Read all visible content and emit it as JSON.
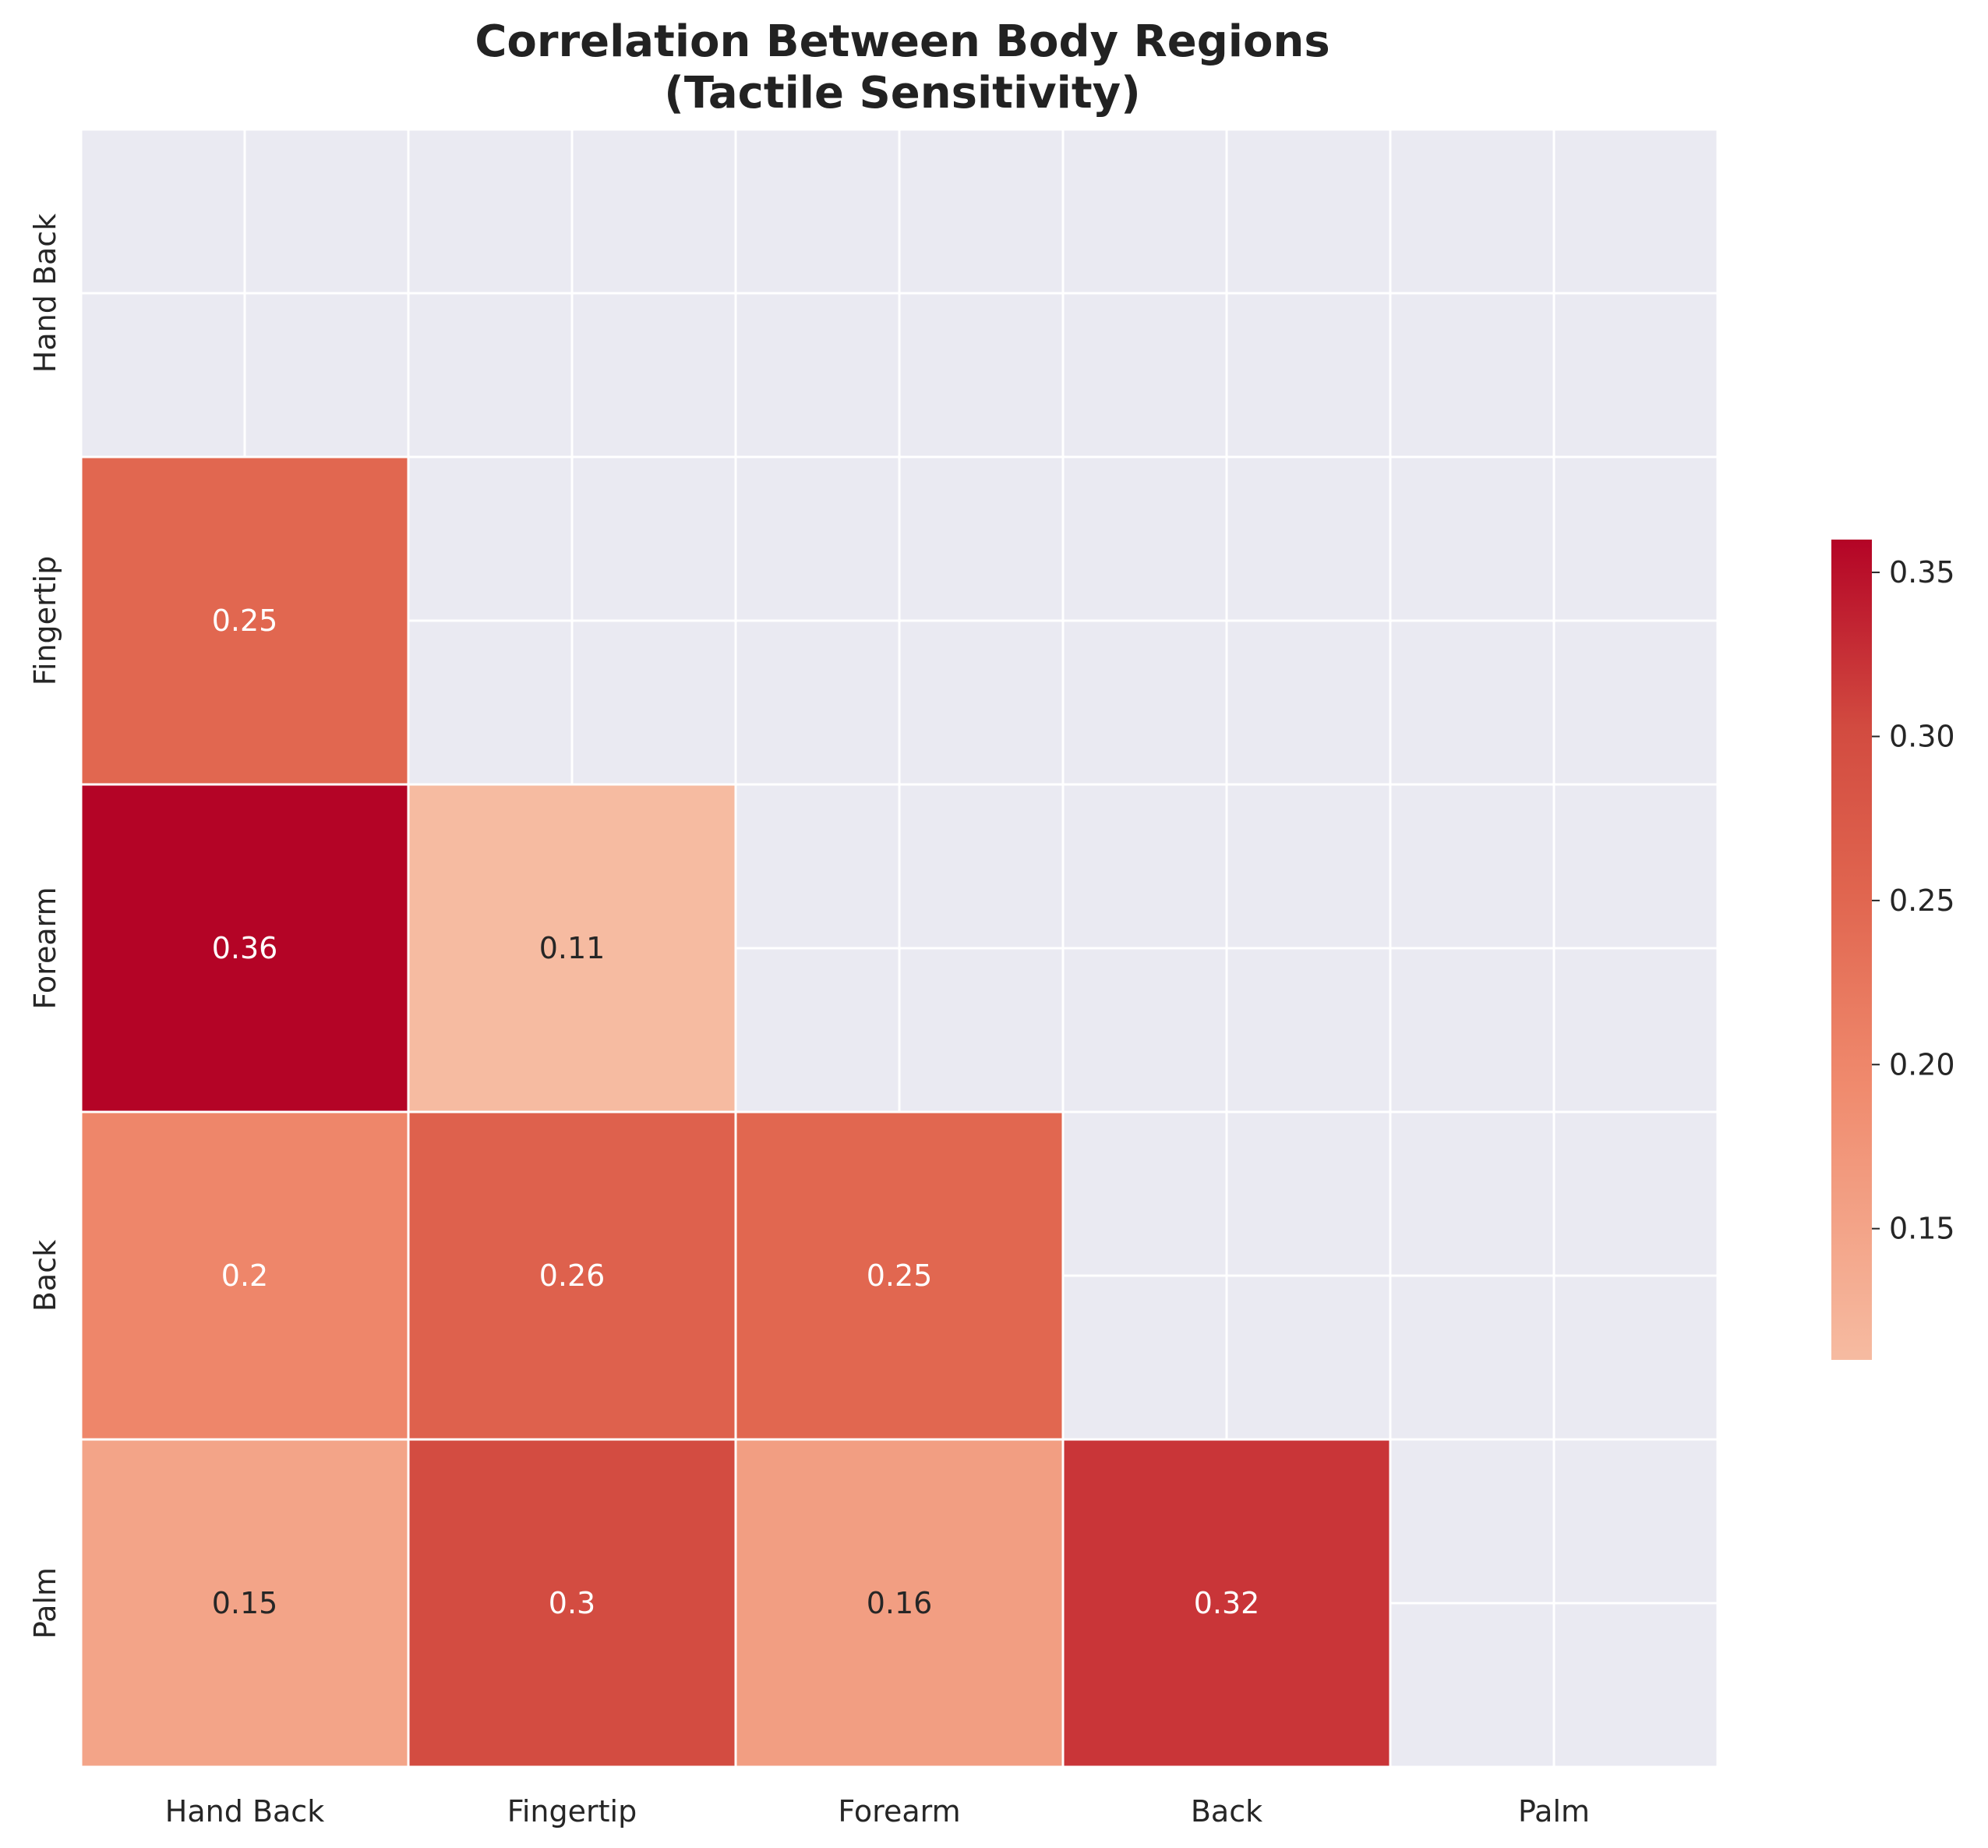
{
  "chart_data": {
    "type": "heatmap",
    "title_line1": "Correlation Between Body Regions",
    "title_line2": "(Tactile Sensitivity)",
    "x_labels": [
      "Hand Back",
      "Fingertip",
      "Forearm",
      "Back",
      "Palm"
    ],
    "y_labels": [
      "Hand Back",
      "Fingertip",
      "Forearm",
      "Back",
      "Palm"
    ],
    "mask": "upper-triangle-including-diagonal",
    "cells": [
      {
        "row": 1,
        "col": 0,
        "value": 0.25,
        "label": "0.25"
      },
      {
        "row": 2,
        "col": 0,
        "value": 0.36,
        "label": "0.36"
      },
      {
        "row": 2,
        "col": 1,
        "value": 0.11,
        "label": "0.11"
      },
      {
        "row": 3,
        "col": 0,
        "value": 0.2,
        "label": "0.2"
      },
      {
        "row": 3,
        "col": 1,
        "value": 0.26,
        "label": "0.26"
      },
      {
        "row": 3,
        "col": 2,
        "value": 0.25,
        "label": "0.25"
      },
      {
        "row": 4,
        "col": 0,
        "value": 0.15,
        "label": "0.15"
      },
      {
        "row": 4,
        "col": 1,
        "value": 0.3,
        "label": "0.3"
      },
      {
        "row": 4,
        "col": 2,
        "value": 0.16,
        "label": "0.16"
      },
      {
        "row": 4,
        "col": 3,
        "value": 0.32,
        "label": "0.32"
      }
    ],
    "colormap": "coolwarm-red-half",
    "colorbar": {
      "min": 0.11,
      "max": 0.36,
      "ticks": [
        0.15,
        0.2,
        0.25,
        0.3,
        0.35
      ],
      "tick_labels": [
        "0.15",
        "0.20",
        "0.25",
        "0.30",
        "0.35"
      ]
    },
    "grid": true,
    "colors": {
      "background_panel": "#EAEAF2",
      "grid_line": "#FFFFFF",
      "low": "#F6BBA1",
      "high": "#B40426"
    }
  }
}
